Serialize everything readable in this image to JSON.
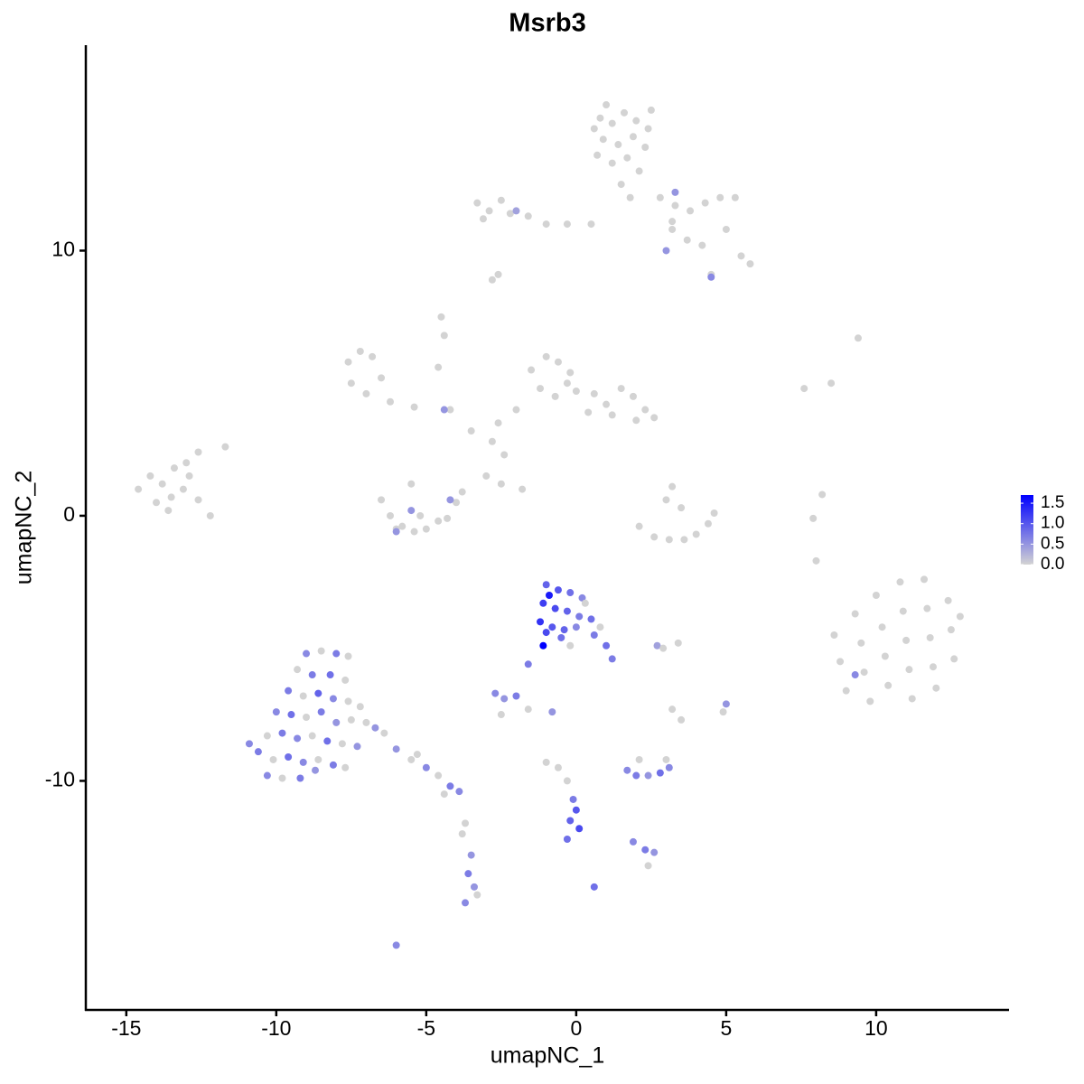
{
  "chart_data": {
    "type": "scatter",
    "title": "Msrb3",
    "x_label": "umapNC_1",
    "y_label": "umapNC_2",
    "xlim": [
      -16.35,
      14.43
    ],
    "ylim": [
      -18.64,
      17.75
    ],
    "xticks": [
      -15,
      -10,
      -5,
      0,
      5,
      10
    ],
    "yticks": [
      -10,
      0,
      10
    ],
    "colors": [
      "lightgrey",
      "blue"
    ],
    "colorlim": [
      0,
      1.7
    ],
    "colorbar_ticks": [
      {
        "value": 0,
        "label": "0.0"
      },
      {
        "value": 0.5,
        "label": "0.5"
      },
      {
        "value": 1,
        "label": "1.0"
      },
      {
        "value": 1.5,
        "label": "1.5"
      }
    ],
    "x": [
      0.8,
      1.2,
      1.6,
      2.0,
      2.4,
      0.9,
      1.4,
      1.9,
      2.3,
      0.7,
      1.2,
      1.7,
      2.1,
      1.5,
      1.8,
      1.0,
      2.5,
      0.6,
      -3.3,
      -2.9,
      -2.5,
      -3.1,
      -2.2,
      -1.6,
      -1.0,
      -0.3,
      0.5,
      -2.0,
      2.8,
      3.3,
      3.8,
      4.3,
      4.8,
      5.3,
      3.2,
      3.7,
      4.2,
      5.0,
      5.5,
      5.8,
      4.5,
      3.2,
      3.0,
      4.5,
      3.3,
      -2.8,
      -2.6,
      -7.6,
      -7.2,
      -6.8,
      -7.5,
      -7.0,
      -6.5,
      -6.2,
      -5.4,
      -4.5,
      -4.4,
      -4.6,
      -4.2,
      -4.4,
      -1.5,
      -1.0,
      -0.6,
      -0.2,
      -1.2,
      -0.7,
      -0.3,
      0.0,
      -2.0,
      -2.6,
      -2.8,
      -3.5,
      -2.4,
      -3.0,
      -2.5,
      -1.8,
      0.6,
      1.0,
      1.5,
      1.9,
      2.3,
      2.6,
      1.2,
      2.0,
      0.4,
      -14.6,
      -14.2,
      -13.8,
      -13.4,
      -13.0,
      -14.0,
      -13.5,
      -13.1,
      -12.6,
      -12.2,
      -13.6,
      -12.9,
      -11.7,
      -12.6,
      -6.5,
      -6.2,
      -5.8,
      -5.4,
      -5.0,
      -4.6,
      -4.0,
      -3.8,
      -4.3,
      -5.2,
      -6.0,
      -5.5,
      -6.0,
      -5.5,
      -4.2,
      2.1,
      2.6,
      3.1,
      3.6,
      4.0,
      4.4,
      4.6,
      3.0,
      3.2,
      3.5,
      9.4,
      8.5,
      7.6,
      8.2,
      7.9,
      8.0,
      8.6,
      8.8,
      9.0,
      9.3,
      9.5,
      9.6,
      9.8,
      10.0,
      10.2,
      10.3,
      10.4,
      10.8,
      10.9,
      11.0,
      11.1,
      11.2,
      11.6,
      11.7,
      11.8,
      11.9,
      12.0,
      12.4,
      12.5,
      12.6,
      12.8,
      9.3,
      -1.0,
      -0.6,
      -0.2,
      0.2,
      -1.1,
      -0.7,
      -0.3,
      0.1,
      0.5,
      -1.2,
      -0.8,
      -0.4,
      0.0,
      0.6,
      1.0,
      1.2,
      -0.5,
      -1.0,
      -1.1,
      -1.6,
      -0.9,
      0.3,
      -0.2,
      0.8,
      2.7,
      3.4,
      2.9,
      -9.0,
      -8.5,
      -8.0,
      -7.6,
      -9.3,
      -8.8,
      -8.2,
      -7.7,
      -9.6,
      -9.1,
      -8.6,
      -8.1,
      -7.6,
      -7.2,
      -10.0,
      -9.5,
      -9.0,
      -8.5,
      -8.0,
      -7.5,
      -7.0,
      -6.7,
      -10.3,
      -9.8,
      -9.3,
      -8.8,
      -8.3,
      -7.8,
      -7.3,
      -10.6,
      -10.1,
      -9.6,
      -9.1,
      -8.6,
      -8.1,
      -7.7,
      -10.3,
      -9.8,
      -9.2,
      -8.7,
      -10.9,
      -6.4,
      -6.0,
      -5.5,
      -5.0,
      -4.6,
      -4.2,
      -3.9,
      -4.4,
      -5.3,
      -3.7,
      -3.5,
      -3.6,
      -3.4,
      -3.7,
      -3.3,
      -3.8,
      -6.0,
      -2.7,
      -2.4,
      -2.0,
      -2.5,
      -1.6,
      -0.8,
      -1.0,
      -0.6,
      -0.3,
      -0.1,
      0.0,
      -0.2,
      0.1,
      -0.3,
      0.6,
      1.7,
      2.0,
      2.4,
      2.8,
      3.1,
      2.1,
      3.0,
      1.9,
      2.3,
      2.6,
      2.4,
      3.2,
      5.0,
      4.9,
      3.5
    ],
    "y": [
      15.0,
      14.8,
      15.2,
      14.9,
      14.6,
      14.2,
      14.0,
      14.3,
      13.9,
      13.6,
      13.3,
      13.5,
      13.0,
      12.5,
      12.0,
      15.5,
      15.3,
      14.6,
      11.8,
      11.5,
      11.9,
      11.2,
      11.4,
      11.3,
      11.0,
      11.0,
      11.0,
      11.5,
      12.0,
      11.7,
      11.5,
      11.8,
      12.0,
      12.0,
      10.8,
      10.4,
      10.2,
      10.8,
      9.8,
      9.5,
      9.1,
      11.1,
      10.0,
      9.0,
      12.2,
      8.9,
      9.1,
      5.8,
      6.2,
      6.0,
      5.0,
      4.6,
      5.2,
      4.3,
      4.1,
      7.5,
      6.8,
      5.6,
      4.0,
      4.0,
      5.5,
      6.0,
      5.8,
      5.4,
      4.8,
      4.5,
      5.0,
      4.7,
      4.0,
      3.5,
      2.8,
      3.2,
      2.3,
      1.5,
      1.2,
      1.0,
      4.6,
      4.2,
      4.8,
      4.5,
      4.0,
      3.7,
      3.8,
      3.6,
      3.9,
      1.0,
      1.5,
      1.2,
      1.8,
      2.0,
      0.5,
      0.7,
      1.0,
      0.6,
      0.0,
      0.2,
      1.5,
      2.6,
      2.4,
      0.6,
      0.0,
      -0.4,
      -0.6,
      -0.5,
      -0.2,
      0.5,
      0.9,
      -0.1,
      0.0,
      -0.5,
      1.2,
      -0.6,
      0.2,
      0.6,
      -0.4,
      -0.8,
      -0.9,
      -0.9,
      -0.7,
      -0.3,
      0.1,
      0.6,
      1.1,
      0.3,
      6.7,
      5.0,
      4.8,
      0.8,
      -0.1,
      -1.7,
      -4.5,
      -5.5,
      -6.6,
      -3.7,
      -4.8,
      -5.9,
      -7.0,
      -3.0,
      -4.2,
      -5.3,
      -6.4,
      -2.5,
      -3.6,
      -4.7,
      -5.8,
      -6.9,
      -2.4,
      -3.5,
      -4.6,
      -5.7,
      -6.5,
      -3.2,
      -4.3,
      -5.4,
      -3.8,
      -6.0,
      -2.6,
      -2.8,
      -2.9,
      -3.1,
      -3.3,
      -3.5,
      -3.6,
      -3.8,
      -3.9,
      -4.0,
      -4.2,
      -4.3,
      -4.2,
      -4.5,
      -4.9,
      -5.4,
      -4.6,
      -4.4,
      -4.9,
      -5.6,
      -3.0,
      -3.3,
      -4.9,
      -4.2,
      -4.9,
      -4.8,
      -5.0,
      -5.2,
      -5.1,
      -5.2,
      -5.3,
      -5.8,
      -6.0,
      -6.0,
      -6.2,
      -6.6,
      -6.8,
      -6.7,
      -6.9,
      -7.0,
      -7.2,
      -7.4,
      -7.5,
      -7.6,
      -7.4,
      -7.8,
      -7.7,
      -7.8,
      -8.0,
      -8.3,
      -8.2,
      -8.4,
      -8.3,
      -8.5,
      -8.6,
      -8.7,
      -8.9,
      -9.2,
      -9.1,
      -9.3,
      -9.2,
      -9.4,
      -9.5,
      -9.8,
      -9.9,
      -9.9,
      -9.6,
      -8.6,
      -8.2,
      -8.8,
      -9.2,
      -9.5,
      -9.8,
      -10.2,
      -10.4,
      -10.5,
      -9.0,
      -11.6,
      -12.8,
      -13.5,
      -14.0,
      -14.6,
      -14.3,
      -12.0,
      -16.2,
      -6.7,
      -6.9,
      -6.8,
      -7.5,
      -7.3,
      -7.4,
      -9.3,
      -9.5,
      -10.0,
      -10.7,
      -11.1,
      -11.5,
      -11.8,
      -12.2,
      -14.0,
      -9.6,
      -9.8,
      -9.8,
      -9.7,
      -9.5,
      -9.2,
      -9.2,
      -12.3,
      -12.6,
      -12.7,
      -13.2,
      -7.3,
      -7.1,
      -7.4,
      -7.7
    ],
    "values": [
      0,
      0,
      0,
      0,
      0,
      0,
      0,
      0,
      0,
      0,
      0,
      0,
      0,
      0,
      0,
      0,
      0,
      0,
      0,
      0,
      0,
      0,
      0,
      0,
      0,
      0,
      0,
      0.4,
      0,
      0,
      0,
      0,
      0,
      0,
      0,
      0,
      0,
      0,
      0,
      0,
      0,
      0,
      0.5,
      0.6,
      0.5,
      0,
      0,
      0,
      0,
      0,
      0,
      0,
      0,
      0,
      0,
      0,
      0,
      0,
      0,
      0.5,
      0,
      0,
      0,
      0,
      0,
      0,
      0,
      0,
      0,
      0,
      0,
      0,
      0,
      0,
      0,
      0,
      0,
      0,
      0,
      0,
      0,
      0,
      0,
      0,
      0,
      0,
      0,
      0,
      0,
      0,
      0,
      0,
      0,
      0,
      0,
      0,
      0,
      0,
      0,
      0,
      0,
      0,
      0,
      0,
      0,
      0,
      0,
      0,
      0,
      0,
      0,
      0.5,
      0.5,
      0.5,
      0,
      0,
      0,
      0,
      0,
      0,
      0,
      0,
      0,
      0,
      0,
      0,
      0,
      0,
      0,
      0,
      0,
      0,
      0,
      0,
      0,
      0,
      0,
      0,
      0,
      0,
      0,
      0,
      0,
      0,
      0,
      0,
      0,
      0,
      0,
      0,
      0,
      0,
      0,
      0,
      0,
      0.6,
      0.9,
      1,
      0.8,
      0.6,
      1.2,
      1.1,
      0.9,
      0.7,
      0.8,
      1.3,
      1,
      0.9,
      0.6,
      0.7,
      0.8,
      0.7,
      0.8,
      1.1,
      1.7,
      0.7,
      1.5,
      0,
      0,
      0,
      0.4,
      0,
      0,
      0.6,
      0,
      0.7,
      0,
      0,
      0.7,
      0.8,
      0,
      0.7,
      0,
      0.9,
      0.6,
      0,
      0,
      0.6,
      0.8,
      0,
      0.7,
      0.5,
      0,
      0,
      0.5,
      0,
      0.7,
      0.6,
      0,
      0.8,
      0,
      0.5,
      0.7,
      0,
      0.8,
      0.6,
      0,
      0.7,
      0,
      0.6,
      0,
      0.7,
      0.5,
      0.6,
      0,
      0.5,
      0,
      0.6,
      0,
      0.7,
      0.6,
      0,
      0,
      0,
      0.5,
      0.7,
      0.5,
      0.6,
      0,
      0,
      0.6,
      0.6,
      0.5,
      0.7,
      0,
      0,
      0.5,
      0,
      0,
      0,
      0.7,
      1,
      0.9,
      1.1,
      0.8,
      0.8,
      0.6,
      0.7,
      0.5,
      0.8,
      0.6,
      0,
      0,
      0.6,
      0.7,
      0.5,
      0,
      0,
      0.5,
      0,
      0
    ]
  }
}
